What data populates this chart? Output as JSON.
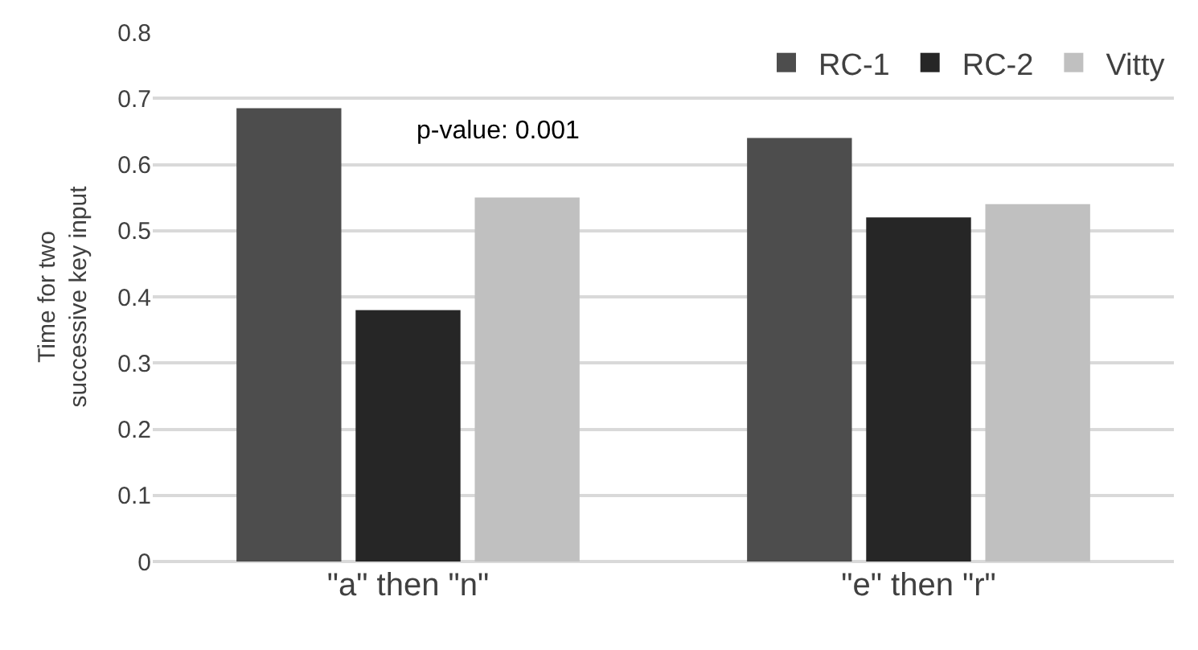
{
  "chart_data": {
    "type": "bar",
    "ylabel": "Time for two\nsuccessive key input",
    "categories": [
      "\"a\" then \"n\"",
      "\"e\" then \"r\""
    ],
    "series": [
      {
        "name": "RC-1",
        "color": "#4d4d4d",
        "values": [
          0.685,
          0.64
        ]
      },
      {
        "name": "RC-2",
        "color": "#262626",
        "values": [
          0.38,
          0.52
        ]
      },
      {
        "name": "Vitty",
        "color": "#c0c0c0",
        "values": [
          0.55,
          0.54
        ]
      }
    ],
    "ylim": [
      0,
      0.8
    ],
    "yticks": [
      0,
      0.1,
      0.2,
      0.3,
      0.4,
      0.5,
      0.6,
      0.7,
      0.8
    ],
    "grid": "y",
    "legend": "top right",
    "annotations": [
      "p-value: 0.001"
    ]
  }
}
